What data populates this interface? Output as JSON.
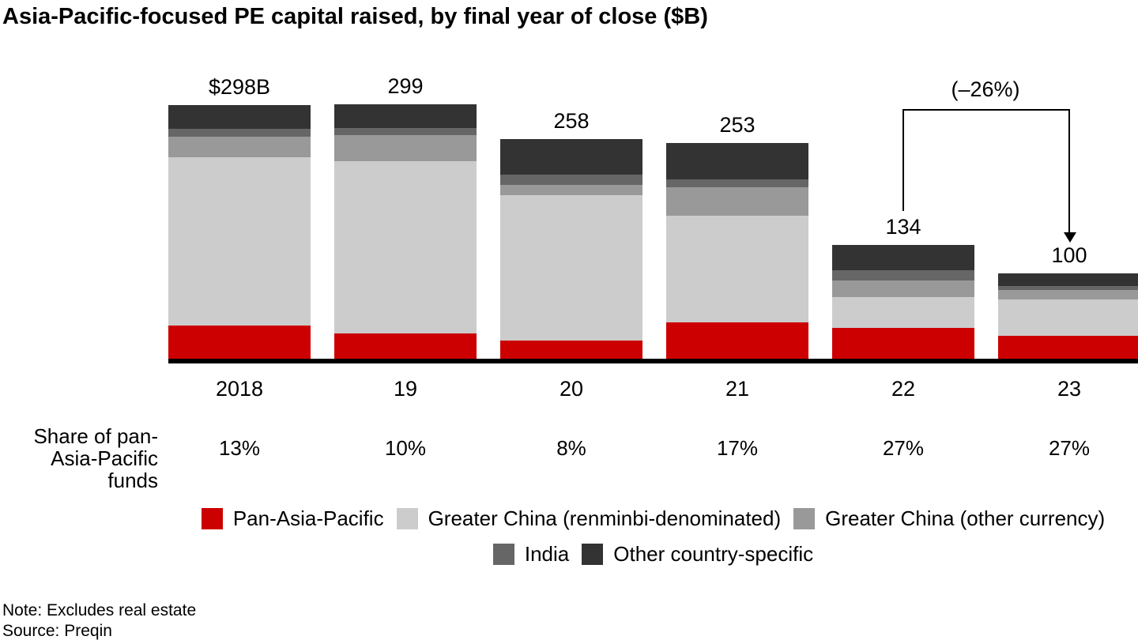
{
  "title": "Asia-Pacific-focused PE capital raised, by final year of close ($B)",
  "chart_data": {
    "type": "bar",
    "stacked": true,
    "title": "Asia-Pacific-focused PE capital raised, by final year of close ($B)",
    "categories": [
      "2018",
      "19",
      "20",
      "21",
      "22",
      "23"
    ],
    "totals": [
      298,
      299,
      258,
      253,
      134,
      100
    ],
    "total_labels": [
      "$298B",
      "299",
      "258",
      "253",
      "134",
      "100"
    ],
    "series": [
      {
        "name": "Pan-Asia-Pacific",
        "color": "#cc0000",
        "values": [
          39,
          30,
          21,
          43,
          36,
          27
        ]
      },
      {
        "name": "Greater China (renminbi-denominated)",
        "color": "#cccccc",
        "values": [
          198,
          202,
          171,
          125,
          36,
          43
        ]
      },
      {
        "name": "Greater China (other currency)",
        "color": "#999999",
        "values": [
          24,
          31,
          12,
          33,
          20,
          11
        ]
      },
      {
        "name": "India",
        "color": "#666666",
        "values": [
          9,
          8,
          12,
          10,
          12,
          4
        ]
      },
      {
        "name": "Other country-specific",
        "color": "#333333",
        "values": [
          28,
          28,
          42,
          42,
          30,
          15
        ]
      }
    ],
    "annotation": {
      "text": "(–26%)",
      "from_category": "22",
      "to_category": "23",
      "change_percent": -26
    },
    "ylim": [
      0,
      310
    ],
    "gridlines": false,
    "legend_position": "bottom",
    "legend_rows": [
      [
        0,
        1,
        2
      ],
      [
        3,
        4
      ]
    ]
  },
  "share_row": {
    "label_line1": "Share of pan-",
    "label_line2": "Asia-Pacific funds",
    "values": [
      "13%",
      "10%",
      "8%",
      "17%",
      "27%",
      "27%"
    ]
  },
  "footer": {
    "note": "Note: Excludes real estate",
    "source": "Source: Preqin"
  }
}
